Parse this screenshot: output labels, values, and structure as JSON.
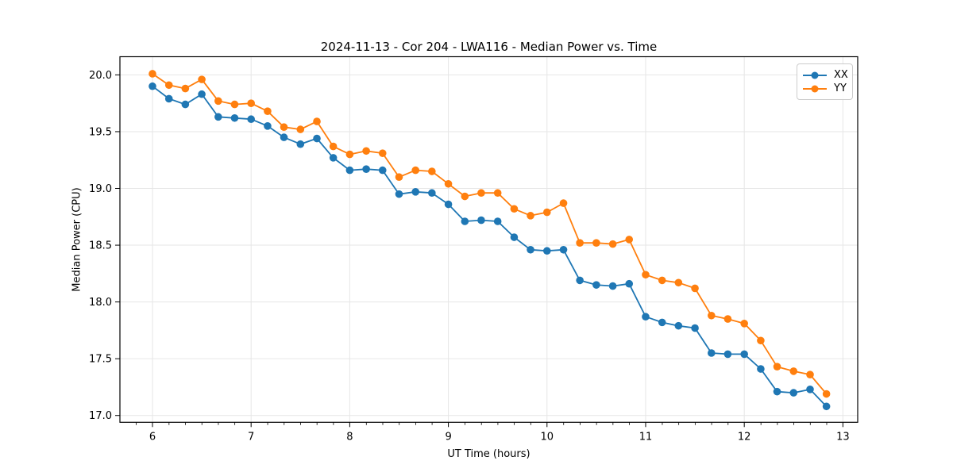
{
  "chart_data": {
    "type": "line",
    "title": "2024-11-13 - Cor 204 - LWA116 - Median Power vs. Time",
    "xlabel": "UT Time (hours)",
    "ylabel": "Median Power (CPU)",
    "grid": true,
    "legend_position": "upper right",
    "marker": "circle",
    "xlim": [
      5.67,
      13.15
    ],
    "ylim": [
      16.94,
      20.16
    ],
    "xticks": [
      6,
      7,
      8,
      9,
      10,
      11,
      12,
      13
    ],
    "yticks": [
      17.0,
      17.5,
      18.0,
      18.5,
      19.0,
      19.5,
      20.0
    ],
    "x_minor_tick_step": 0.1667,
    "x": [
      6.0,
      6.167,
      6.333,
      6.5,
      6.667,
      6.833,
      7.0,
      7.167,
      7.333,
      7.5,
      7.667,
      7.833,
      8.0,
      8.167,
      8.333,
      8.5,
      8.667,
      8.833,
      9.0,
      9.167,
      9.333,
      9.5,
      9.667,
      9.833,
      10.0,
      10.167,
      10.333,
      10.5,
      10.667,
      10.833,
      11.0,
      11.167,
      11.333,
      11.5,
      11.667,
      11.833,
      12.0,
      12.167,
      12.333,
      12.5,
      12.667,
      12.833
    ],
    "series": [
      {
        "name": "XX",
        "color": "#1f77b4",
        "values": [
          19.9,
          19.79,
          19.74,
          19.83,
          19.63,
          19.62,
          19.61,
          19.55,
          19.45,
          19.39,
          19.44,
          19.27,
          19.16,
          19.17,
          19.16,
          18.95,
          18.97,
          18.96,
          18.86,
          18.71,
          18.72,
          18.71,
          18.57,
          18.46,
          18.45,
          18.46,
          18.19,
          18.15,
          18.14,
          18.16,
          17.87,
          17.82,
          17.79,
          17.77,
          17.55,
          17.54,
          17.54,
          17.41,
          17.21,
          17.2,
          17.23,
          17.08
        ]
      },
      {
        "name": "YY",
        "color": "#ff7f0e",
        "values": [
          20.01,
          19.91,
          19.88,
          19.96,
          19.77,
          19.74,
          19.75,
          19.68,
          19.54,
          19.52,
          19.59,
          19.37,
          19.3,
          19.33,
          19.31,
          19.1,
          19.16,
          19.15,
          19.04,
          18.93,
          18.96,
          18.96,
          18.82,
          18.76,
          18.79,
          18.87,
          18.52,
          18.52,
          18.51,
          18.55,
          18.24,
          18.19,
          18.17,
          18.12,
          17.88,
          17.85,
          17.81,
          17.66,
          17.43,
          17.39,
          17.36,
          17.19
        ]
      }
    ],
    "style": {
      "grid_color": "#e6e6e6",
      "spine_color": "#000000",
      "tick_color": "#000000",
      "background": "#ffffff"
    }
  }
}
